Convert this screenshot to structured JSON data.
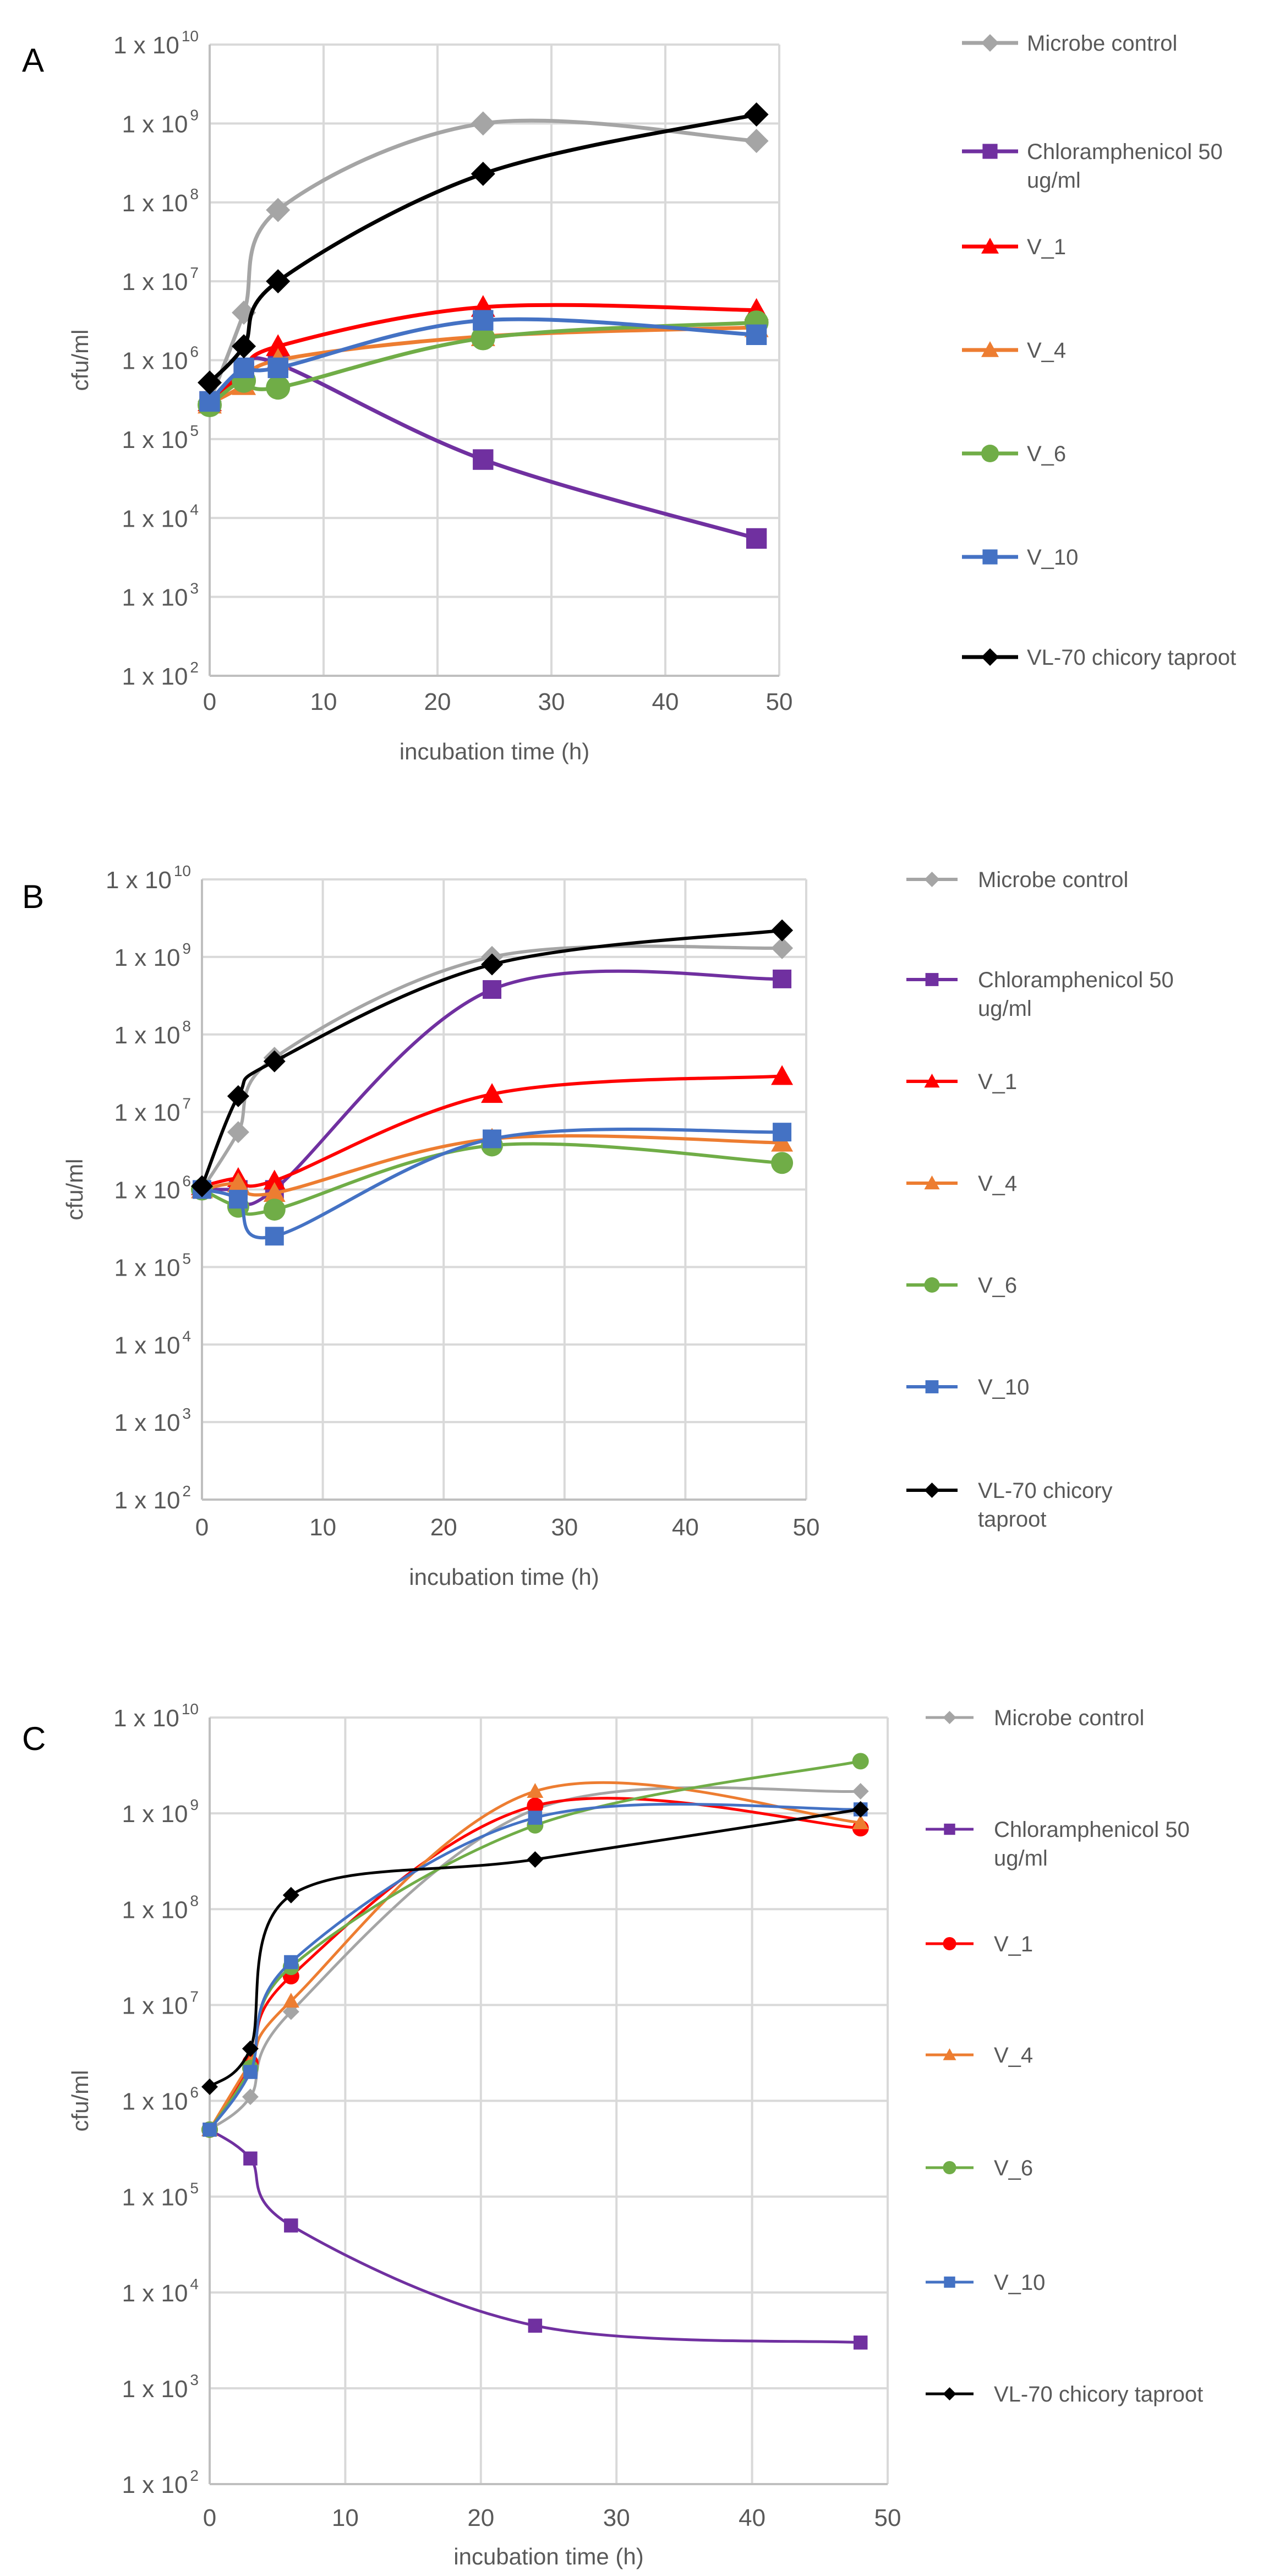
{
  "chart_data": [
    {
      "type": "line",
      "panel_label": "A",
      "xlabel": "incubation time (h)",
      "ylabel": "cfu/ml",
      "yscale": "log",
      "xlim": [
        0,
        50
      ],
      "ylim": [
        100,
        10000000000
      ],
      "x_ticks": [
        "0",
        "10",
        "20",
        "30",
        "40",
        "50"
      ],
      "y_ticks": [
        {
          "base": "1 x 10",
          "exp": "10"
        },
        {
          "base": "1 x 10",
          "exp": "9"
        },
        {
          "base": "1 x 10",
          "exp": "8"
        },
        {
          "base": "1 x 10",
          "exp": "7"
        },
        {
          "base": "1 x 10",
          "exp": "6"
        },
        {
          "base": "1 x 10",
          "exp": "5"
        },
        {
          "base": "1 x 10",
          "exp": "4"
        },
        {
          "base": "1 x 10",
          "exp": "3"
        },
        {
          "base": "1 x 10",
          "exp": "2"
        }
      ],
      "grid": true,
      "legend": "right",
      "x": [
        0,
        3,
        6,
        24,
        48
      ],
      "series": [
        {
          "name": "Microbe control",
          "legend_lines": [
            "Microbe control"
          ],
          "color": "#a5a5a5",
          "marker": "diamond",
          "values": [
            300000,
            4000000,
            80000000,
            1000000000,
            600000000
          ]
        },
        {
          "name": "Chloramphenicol 50 ug/ml",
          "legend_lines": [
            "Chloramphenicol 50",
            "ug/ml"
          ],
          "color": "#7030a0",
          "marker": "square",
          "values": [
            300000,
            700000,
            900000,
            55000,
            5500
          ]
        },
        {
          "name": "V_1",
          "legend_lines": [
            "V_1"
          ],
          "color": "#ff0000",
          "marker": "triangle",
          "values": [
            300000,
            700000,
            1500000,
            4700000,
            4300000
          ]
        },
        {
          "name": "V_4",
          "legend_lines": [
            "V_4"
          ],
          "color": "#ed7d31",
          "marker": "triangle",
          "values": [
            280000,
            480000,
            1000000,
            2000000,
            2600000
          ]
        },
        {
          "name": "V_6",
          "legend_lines": [
            "V_6"
          ],
          "color": "#70ad47",
          "marker": "circle",
          "values": [
            270000,
            550000,
            450000,
            1900000,
            3000000
          ]
        },
        {
          "name": "V_10",
          "legend_lines": [
            "V_10"
          ],
          "color": "#4472c4",
          "marker": "square",
          "values": [
            300000,
            800000,
            800000,
            3200000,
            2100000
          ]
        },
        {
          "name": "VL-70 chicory taproot",
          "legend_lines": [
            "VL-70 chicory taproot"
          ],
          "color": "#000000",
          "marker": "diamond",
          "values": [
            520000,
            1500000,
            10000000,
            230000000,
            1300000000
          ]
        }
      ]
    },
    {
      "type": "line",
      "panel_label": "B",
      "xlabel": "incubation time (h)",
      "ylabel": "cfu/ml",
      "yscale": "log",
      "xlim": [
        0,
        50
      ],
      "ylim": [
        100,
        10000000000
      ],
      "x_ticks": [
        "0",
        "10",
        "20",
        "30",
        "40",
        "50"
      ],
      "y_ticks": [
        {
          "base": "1 x 10",
          "exp": "10"
        },
        {
          "base": "1 x 10",
          "exp": "9"
        },
        {
          "base": "1 x 10",
          "exp": "8"
        },
        {
          "base": "1 x 10",
          "exp": "7"
        },
        {
          "base": "1 x 10",
          "exp": "6"
        },
        {
          "base": "1 x 10",
          "exp": "5"
        },
        {
          "base": "1 x 10",
          "exp": "4"
        },
        {
          "base": "1 x 10",
          "exp": "3"
        },
        {
          "base": "1 x 10",
          "exp": "2"
        }
      ],
      "grid": true,
      "legend": "right",
      "x": [
        0,
        3,
        6,
        24,
        48
      ],
      "series": [
        {
          "name": "Microbe control",
          "legend_lines": [
            "Microbe control"
          ],
          "color": "#a5a5a5",
          "marker": "diamond",
          "values": [
            1000000,
            5500000,
            50000000,
            1000000000,
            1300000000
          ]
        },
        {
          "name": "Chloramphenicol 50 ug/ml",
          "legend_lines": [
            "Chloramphenicol 50",
            "ug/ml"
          ],
          "color": "#7030a0",
          "marker": "square",
          "values": [
            1000000,
            1000000,
            1000000,
            380000000,
            520000000
          ]
        },
        {
          "name": "V_1",
          "legend_lines": [
            "V_1"
          ],
          "color": "#ff0000",
          "marker": "triangle",
          "values": [
            1100000,
            1400000,
            1300000,
            17000000,
            29000000
          ]
        },
        {
          "name": "V_4",
          "legend_lines": [
            "V_4"
          ],
          "color": "#ed7d31",
          "marker": "triangle",
          "values": [
            1000000,
            1200000,
            900000,
            4500000,
            4000000
          ]
        },
        {
          "name": "V_6",
          "legend_lines": [
            "V_6"
          ],
          "color": "#70ad47",
          "marker": "circle",
          "values": [
            1000000,
            600000,
            550000,
            3700000,
            2200000
          ]
        },
        {
          "name": "V_10",
          "legend_lines": [
            "V_10"
          ],
          "color": "#4472c4",
          "marker": "square",
          "values": [
            1000000,
            750000,
            250000,
            4500000,
            5500000
          ]
        },
        {
          "name": "VL-70 chicory taproot",
          "legend_lines": [
            "VL-70 chicory",
            "taproot"
          ],
          "color": "#000000",
          "marker": "diamond",
          "values": [
            1100000,
            16000000,
            45000000,
            800000000,
            2200000000
          ]
        }
      ]
    },
    {
      "type": "line",
      "panel_label": "C",
      "xlabel": "incubation time (h)",
      "ylabel": "cfu/ml",
      "yscale": "log",
      "xlim": [
        0,
        50
      ],
      "ylim": [
        100,
        10000000000
      ],
      "x_ticks": [
        "0",
        "10",
        "20",
        "30",
        "40",
        "50"
      ],
      "y_ticks": [
        {
          "base": "1 x 10",
          "exp": "10"
        },
        {
          "base": "1 x 10",
          "exp": "9"
        },
        {
          "base": "1 x 10",
          "exp": "8"
        },
        {
          "base": "1 x 10",
          "exp": "7"
        },
        {
          "base": "1 x 10",
          "exp": "6"
        },
        {
          "base": "1 x 10",
          "exp": "5"
        },
        {
          "base": "1 x 10",
          "exp": "4"
        },
        {
          "base": "1 x 10",
          "exp": "3"
        },
        {
          "base": "1 x 10",
          "exp": "2"
        }
      ],
      "grid": true,
      "legend": "right",
      "x": [
        0,
        3,
        6,
        24,
        48
      ],
      "series": [
        {
          "name": "Microbe control",
          "legend_lines": [
            "Microbe control"
          ],
          "color": "#a5a5a5",
          "marker": "diamond",
          "values": [
            500000,
            1100000,
            8500000,
            1100000000,
            1700000000
          ]
        },
        {
          "name": "Chloramphenicol 50 ug/ml",
          "legend_lines": [
            "Chloramphenicol 50",
            "ug/ml"
          ],
          "color": "#7030a0",
          "marker": "square",
          "values": [
            500000,
            250000,
            50000,
            4500,
            3000
          ]
        },
        {
          "name": "V_1",
          "legend_lines": [
            "V_1"
          ],
          "color": "#ff0000",
          "marker": "circle",
          "values": [
            500000,
            2500000,
            20000000,
            1200000000,
            700000000
          ]
        },
        {
          "name": "V_4",
          "legend_lines": [
            "V_4"
          ],
          "color": "#ed7d31",
          "marker": "triangle",
          "values": [
            500000,
            2500000,
            11000000,
            1700000000,
            800000000
          ]
        },
        {
          "name": "V_6",
          "legend_lines": [
            "V_6"
          ],
          "color": "#70ad47",
          "marker": "circle",
          "values": [
            500000,
            2200000,
            25000000,
            750000000,
            3500000000
          ]
        },
        {
          "name": "V_10",
          "legend_lines": [
            "V_10"
          ],
          "color": "#4472c4",
          "marker": "square",
          "values": [
            500000,
            2000000,
            28000000,
            900000000,
            1100000000
          ]
        },
        {
          "name": "VL-70 chicory taproot",
          "legend_lines": [
            "VL-70 chicory taproot"
          ],
          "color": "#000000",
          "marker": "diamond",
          "values": [
            1400000,
            3500000,
            140000000,
            330000000,
            1100000000
          ]
        }
      ]
    }
  ]
}
